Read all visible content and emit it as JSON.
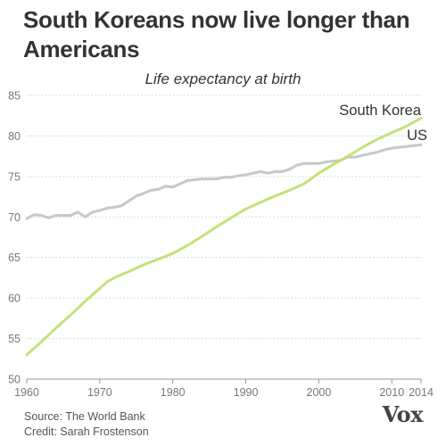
{
  "chart_data": {
    "type": "line",
    "title": "South Koreans now live longer than Americans",
    "subtitle": "Life expectancy at birth",
    "xlabel": "",
    "ylabel": "",
    "xlim": [
      1960,
      2014
    ],
    "ylim": [
      50,
      85
    ],
    "xticks": [
      "1960",
      "1970",
      "1980",
      "1990",
      "2000",
      "2010",
      "2014"
    ],
    "yticks": [
      "50",
      "55",
      "60",
      "65",
      "70",
      "75",
      "80",
      "85"
    ],
    "grid": true,
    "series": [
      {
        "name": "US",
        "color": "#c8c8c8",
        "x": [
          1960,
          1961,
          1962,
          1963,
          1964,
          1965,
          1966,
          1967,
          1968,
          1969,
          1970,
          1971,
          1972,
          1973,
          1974,
          1975,
          1976,
          1977,
          1978,
          1979,
          1980,
          1981,
          1982,
          1983,
          1984,
          1985,
          1986,
          1987,
          1988,
          1989,
          1990,
          1991,
          1992,
          1993,
          1994,
          1995,
          1996,
          1997,
          1998,
          1999,
          2000,
          2001,
          2002,
          2003,
          2004,
          2005,
          2006,
          2007,
          2008,
          2009,
          2010,
          2011,
          2012,
          2013,
          2014
        ],
        "y": [
          69.8,
          70.3,
          70.2,
          69.9,
          70.2,
          70.2,
          70.2,
          70.6,
          70.0,
          70.6,
          70.8,
          71.1,
          71.2,
          71.4,
          72.0,
          72.6,
          72.9,
          73.3,
          73.4,
          73.8,
          73.7,
          74.1,
          74.5,
          74.6,
          74.7,
          74.7,
          74.7,
          74.9,
          74.9,
          75.1,
          75.2,
          75.4,
          75.6,
          75.4,
          75.6,
          75.6,
          75.9,
          76.4,
          76.6,
          76.6,
          76.6,
          76.8,
          76.9,
          77.0,
          77.4,
          77.4,
          77.6,
          77.8,
          78.0,
          78.3,
          78.5,
          78.6,
          78.7,
          78.8,
          78.9
        ]
      },
      {
        "name": "South Korea",
        "color": "#c4e17a",
        "x": [
          1960,
          1962,
          1964,
          1966,
          1968,
          1970,
          1971,
          1972,
          1974,
          1976,
          1978,
          1980,
          1982,
          1984,
          1986,
          1988,
          1990,
          1992,
          1994,
          1996,
          1998,
          2000,
          2002,
          2004,
          2006,
          2008,
          2010,
          2012,
          2014
        ],
        "y": [
          53.0,
          54.6,
          56.3,
          57.9,
          59.6,
          61.2,
          62.0,
          62.5,
          63.3,
          64.1,
          64.8,
          65.5,
          66.5,
          67.6,
          68.8,
          69.9,
          71.0,
          71.8,
          72.6,
          73.3,
          74.1,
          75.4,
          76.5,
          77.5,
          78.6,
          79.6,
          80.4,
          81.2,
          82.2
        ]
      }
    ],
    "labels": {
      "south_korea": "South Korea",
      "us": "US"
    }
  },
  "footer": {
    "source": "Source: The World Bank",
    "credit": "Credit: Sarah Frostenson"
  },
  "brand": {
    "logo": "Vox"
  }
}
